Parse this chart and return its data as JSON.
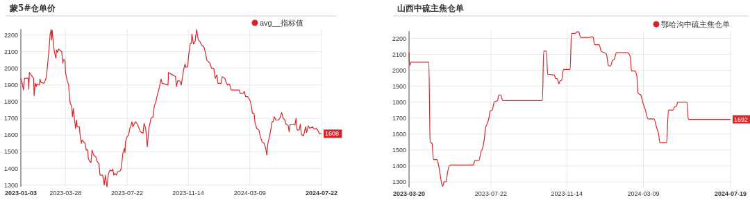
{
  "chart_data": [
    {
      "type": "line",
      "title": "蒙5#仓单价",
      "legend": "top right",
      "grid": true,
      "xlim": [
        "2023-01-03",
        "2024-07-22"
      ],
      "xticks": [
        "2023-01-03",
        "2023-03-28",
        "2023-07-22",
        "2023-11-14",
        "2024-03-09",
        "2024-07-22"
      ],
      "ylim": [
        1290,
        2235
      ],
      "yticks": [
        1300,
        1400,
        1500,
        1600,
        1700,
        1800,
        1900,
        2000,
        2100,
        2200
      ],
      "annotations": [
        {
          "text": "1608",
          "x": "2024-07-22",
          "y": 1608
        }
      ],
      "series": [
        {
          "name": "avg__指标值",
          "color": "#d7262b",
          "x": [
            "2023-01-03",
            "2023-01-05",
            "2023-01-08",
            "2023-01-10",
            "2023-01-17",
            "2023-01-18",
            "2023-01-19",
            "2023-01-27",
            "2023-01-28",
            "2023-01-30",
            "2023-02-01",
            "2023-02-02",
            "2023-02-07",
            "2023-02-08",
            "2023-02-10",
            "2023-02-16",
            "2023-02-20",
            "2023-02-25",
            "2023-02-27",
            "2023-03-01",
            "2023-03-02",
            "2023-03-03",
            "2023-03-05",
            "2023-03-07",
            "2023-03-10",
            "2023-03-11",
            "2023-03-13",
            "2023-03-15",
            "2023-03-21",
            "2023-03-23",
            "2023-03-24",
            "2023-03-27",
            "2023-03-28",
            "2023-03-29",
            "2023-03-31",
            "2023-04-03",
            "2023-04-04",
            "2023-04-06",
            "2023-04-09",
            "2023-04-10",
            "2023-04-12",
            "2023-04-13",
            "2023-04-16",
            "2023-04-18",
            "2023-04-19",
            "2023-04-23",
            "2023-04-25",
            "2023-04-27",
            "2023-04-28",
            "2023-05-04",
            "2023-05-06",
            "2023-05-09",
            "2023-05-10",
            "2023-05-13",
            "2023-05-15",
            "2023-05-17",
            "2023-05-20",
            "2023-05-24",
            "2023-05-27",
            "2023-05-30",
            "2023-06-01",
            "2023-06-06",
            "2023-06-09",
            "2023-06-11",
            "2023-06-14",
            "2023-06-17",
            "2023-06-20",
            "2023-06-23",
            "2023-06-25",
            "2023-06-27",
            "2023-06-29",
            "2023-07-02",
            "2023-07-04",
            "2023-07-09",
            "2023-07-11",
            "2023-07-14",
            "2023-07-17",
            "2023-07-18",
            "2023-07-19",
            "2023-07-22",
            "2023-07-25",
            "2023-07-27",
            "2023-07-29",
            "2023-07-31",
            "2023-08-02",
            "2023-08-05",
            "2023-08-07",
            "2023-08-11",
            "2023-08-16",
            "2023-08-21",
            "2023-08-23",
            "2023-08-26",
            "2023-08-29",
            "2023-09-01",
            "2023-09-05",
            "2023-09-09",
            "2023-09-11",
            "2023-09-14",
            "2023-09-17",
            "2023-09-21",
            "2023-09-24",
            "2023-09-26",
            "2023-10-07",
            "2023-10-08",
            "2023-10-13",
            "2023-10-16",
            "2023-10-21",
            "2023-10-23",
            "2023-10-25",
            "2023-10-29",
            "2023-11-01",
            "2023-11-06",
            "2023-11-08",
            "2023-11-10",
            "2023-11-13",
            "2023-11-15",
            "2023-11-18",
            "2023-11-20",
            "2023-11-21",
            "2023-11-24",
            "2023-11-27",
            "2023-11-28",
            "2023-11-30",
            "2023-12-03",
            "2023-12-06",
            "2023-12-09",
            "2023-12-14",
            "2023-12-16",
            "2023-12-19",
            "2023-12-22",
            "2023-12-25",
            "2023-12-28",
            "2024-01-01",
            "2024-01-04",
            "2024-01-07",
            "2024-01-09",
            "2024-01-15",
            "2024-01-17",
            "2024-01-22",
            "2024-01-24",
            "2024-01-27",
            "2024-01-31",
            "2024-02-03",
            "2024-02-18",
            "2024-02-20",
            "2024-02-25",
            "2024-02-28",
            "2024-03-01",
            "2024-03-05",
            "2024-03-09",
            "2024-03-11",
            "2024-03-14",
            "2024-03-17",
            "2024-03-19",
            "2024-03-22",
            "2024-03-26",
            "2024-03-29",
            "2024-04-01",
            "2024-04-05",
            "2024-04-08",
            "2024-04-10",
            "2024-04-12",
            "2024-04-15",
            "2024-04-18",
            "2024-04-20",
            "2024-04-22",
            "2024-04-24",
            "2024-04-27",
            "2024-05-02",
            "2024-05-05",
            "2024-05-08",
            "2024-05-11",
            "2024-05-14",
            "2024-05-16",
            "2024-05-20",
            "2024-05-22",
            "2024-05-24",
            "2024-05-30",
            "2024-06-02",
            "2024-06-04",
            "2024-06-06",
            "2024-06-10",
            "2024-06-12",
            "2024-06-14",
            "2024-06-18",
            "2024-06-20",
            "2024-06-22",
            "2024-06-24",
            "2024-06-27",
            "2024-06-30",
            "2024-07-05",
            "2024-07-08",
            "2024-07-12",
            "2024-07-15",
            "2024-07-18",
            "2024-07-22"
          ],
          "values": [
            1940,
            1920,
            1870,
            1940,
            1940,
            1875,
            1975,
            1940,
            1835,
            1910,
            1890,
            1905,
            1900,
            1935,
            1915,
            1910,
            1945,
            2110,
            2200,
            2232,
            2170,
            2228,
            2160,
            2100,
            2060,
            2110,
            2095,
            2115,
            2100,
            2030,
            2050,
            2050,
            1980,
            1960,
            1930,
            1900,
            1850,
            1790,
            1770,
            1710,
            1760,
            1720,
            1640,
            1690,
            1650,
            1650,
            1590,
            1550,
            1570,
            1550,
            1510,
            1510,
            1460,
            1440,
            1435,
            1510,
            1480,
            1470,
            1440,
            1430,
            1360,
            1360,
            1300,
            1360,
            1290,
            1370,
            1390,
            1385,
            1395,
            1360,
            1370,
            1360,
            1380,
            1385,
            1400,
            1490,
            1520,
            1495,
            1560,
            1590,
            1600,
            1640,
            1650,
            1680,
            1650,
            1670,
            1680,
            1660,
            1620,
            1610,
            1670,
            1640,
            1530,
            1640,
            1700,
            1710,
            1770,
            1800,
            1840,
            1890,
            1935,
            1910,
            1900,
            1975,
            1965,
            1960,
            1950,
            1890,
            1925,
            1925,
            1900,
            2000,
            2025,
            2005,
            2010,
            2080,
            2150,
            2150,
            2205,
            2145,
            2160,
            2190,
            2232,
            2170,
            2160,
            2140,
            2125,
            2100,
            2050,
            2040,
            2030,
            2000,
            2000,
            1940,
            1960,
            1910,
            1910,
            1950,
            1940,
            1920,
            1900,
            1905,
            1870,
            1870,
            1850,
            1850,
            1860,
            1830,
            1830,
            1810,
            1790,
            1730,
            1730,
            1670,
            1640,
            1630,
            1590,
            1560,
            1550,
            1520,
            1480,
            1550,
            1590,
            1640,
            1680,
            1680,
            1710,
            1690,
            1690,
            1705,
            1735,
            1700,
            1690,
            1665,
            1660,
            1620,
            1665,
            1665,
            1660,
            1700,
            1630,
            1630,
            1665,
            1605,
            1595,
            1620,
            1650,
            1615,
            1655,
            1640,
            1650,
            1635,
            1640,
            1630,
            1608,
            1608
          ]
        }
      ]
    },
    {
      "type": "line",
      "title": "山西中硫主焦仓单",
      "legend": "top right",
      "grid": true,
      "xlim": [
        "2023-03-20",
        "2024-07-19"
      ],
      "xticks": [
        "2023-03-20",
        "2023-07-22",
        "2023-11-14",
        "2024-03-09",
        "2024-07-19"
      ],
      "ylim": [
        1265,
        2245
      ],
      "yticks": [
        1300,
        1400,
        1500,
        1600,
        1700,
        1800,
        1900,
        2000,
        2100,
        2200
      ],
      "annotations": [
        {
          "text": "1692",
          "x": "2024-07-19",
          "y": 1692
        }
      ],
      "series": [
        {
          "name": "鄂哈沟中硫主焦仓单",
          "color": "#d7262b",
          "x": [
            "2023-03-20",
            "2023-03-21",
            "2023-03-23",
            "2023-04-19",
            "2023-04-21",
            "2023-04-24",
            "2023-04-26",
            "2023-05-01",
            "2023-05-03",
            "2023-05-06",
            "2023-05-09",
            "2023-05-10",
            "2023-05-12",
            "2023-05-15",
            "2023-05-17",
            "2023-05-20",
            "2023-05-23",
            "2023-06-25",
            "2023-06-28",
            "2023-07-04",
            "2023-07-07",
            "2023-07-09",
            "2023-07-12",
            "2023-07-14",
            "2023-07-17",
            "2023-07-19",
            "2023-07-21",
            "2023-07-24",
            "2023-07-27",
            "2023-08-01",
            "2023-08-03",
            "2023-08-06",
            "2023-08-09",
            "2023-10-08",
            "2023-10-10",
            "2023-10-14",
            "2023-10-16",
            "2023-10-26",
            "2023-10-28",
            "2023-10-31",
            "2023-11-02",
            "2023-11-04",
            "2023-11-06",
            "2023-11-09",
            "2023-11-19",
            "2023-11-21",
            "2023-11-27",
            "2023-11-29",
            "2023-12-02",
            "2023-12-05",
            "2023-12-19",
            "2023-12-22",
            "2023-12-24",
            "2023-12-26",
            "2024-01-02",
            "2024-01-05",
            "2024-01-10",
            "2024-01-13",
            "2024-01-16",
            "2024-01-19",
            "2024-01-22",
            "2024-01-25",
            "2024-01-28",
            "2024-02-14",
            "2024-02-18",
            "2024-02-20",
            "2024-02-25",
            "2024-02-28",
            "2024-03-01",
            "2024-03-05",
            "2024-03-08",
            "2024-03-12",
            "2024-03-16",
            "2024-03-25",
            "2024-03-29",
            "2024-04-01",
            "2024-04-03",
            "2024-04-13",
            "2024-04-16",
            "2024-04-23",
            "2024-04-25",
            "2024-04-28",
            "2024-04-30",
            "2024-05-14",
            "2024-05-16",
            "2024-07-19"
          ],
          "values": [
            2110,
            2030,
            2050,
            2050,
            1550,
            1540,
            1440,
            1440,
            1420,
            1350,
            1280,
            1272,
            1300,
            1300,
            1350,
            1400,
            1405,
            1405,
            1435,
            1435,
            1490,
            1505,
            1570,
            1640,
            1670,
            1700,
            1745,
            1750,
            1800,
            1810,
            1845,
            1845,
            1810,
            1810,
            2120,
            2120,
            1975,
            1970,
            1950,
            1945,
            1915,
            1935,
            1935,
            2005,
            2005,
            2230,
            2230,
            2240,
            2240,
            2205,
            2205,
            2210,
            2205,
            2160,
            2160,
            2120,
            2110,
            2100,
            2030,
            2025,
            2060,
            2070,
            2110,
            2110,
            2085,
            1995,
            1995,
            1965,
            1855,
            1845,
            1800,
            1750,
            1695,
            1695,
            1640,
            1600,
            1545,
            1545,
            1750,
            1750,
            1770,
            1775,
            1800,
            1800,
            1692,
            1692
          ]
        }
      ]
    }
  ]
}
